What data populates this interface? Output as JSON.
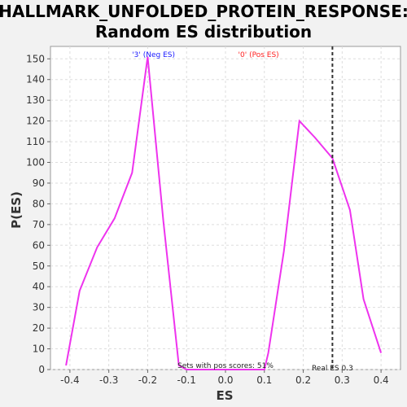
{
  "chart_data": {
    "type": "line",
    "title_line1": "HALLMARK_UNFOLDED_PROTEIN_RESPONSE:",
    "title_line2": "Random ES distribution",
    "xlabel": "ES",
    "ylabel": "P(ES)",
    "xlim": [
      -0.45,
      0.45
    ],
    "ylim": [
      0,
      156
    ],
    "xticks": [
      -0.4,
      -0.3,
      -0.2,
      -0.1,
      0.0,
      0.1,
      0.2,
      0.3,
      0.4
    ],
    "xtick_labels": [
      "-0.4",
      "-0.3",
      "-0.2",
      "-0.1",
      "0.0",
      "0.1",
      "0.2",
      "0.3",
      "0.4"
    ],
    "yticks": [
      0,
      10,
      20,
      30,
      40,
      50,
      60,
      70,
      80,
      90,
      100,
      110,
      120,
      130,
      140,
      150
    ],
    "ytick_labels": [
      "0",
      "10",
      "20",
      "30",
      "40",
      "50",
      "60",
      "70",
      "80",
      "90",
      "100",
      "110",
      "120",
      "130",
      "140",
      "150"
    ],
    "grid": true,
    "series": [
      {
        "color": "#ee33ee",
        "points": [
          [
            -0.41,
            2
          ],
          [
            -0.375,
            38
          ],
          [
            -0.33,
            59
          ],
          [
            -0.285,
            73
          ],
          [
            -0.24,
            95
          ],
          [
            -0.2,
            151
          ],
          [
            -0.16,
            72
          ],
          [
            -0.12,
            2
          ],
          [
            -0.1,
            0
          ],
          [
            0.1,
            0
          ],
          [
            0.11,
            8
          ],
          [
            0.15,
            57
          ],
          [
            0.19,
            120
          ],
          [
            0.23,
            112
          ],
          [
            0.275,
            102
          ],
          [
            0.32,
            77
          ],
          [
            0.355,
            34
          ],
          [
            0.4,
            8
          ]
        ]
      }
    ],
    "real_es": 0.275,
    "real_es_color": "#333333",
    "annotations": {
      "neg_label": "'3' (Neg ES)",
      "neg_color": "#1a1aff",
      "pos_label": "'0' (Pos ES)",
      "pos_color": "#ff2222",
      "pos_scores": "Sets with pos scores: 51%",
      "real_es_label": "Real ES 0.3"
    }
  }
}
